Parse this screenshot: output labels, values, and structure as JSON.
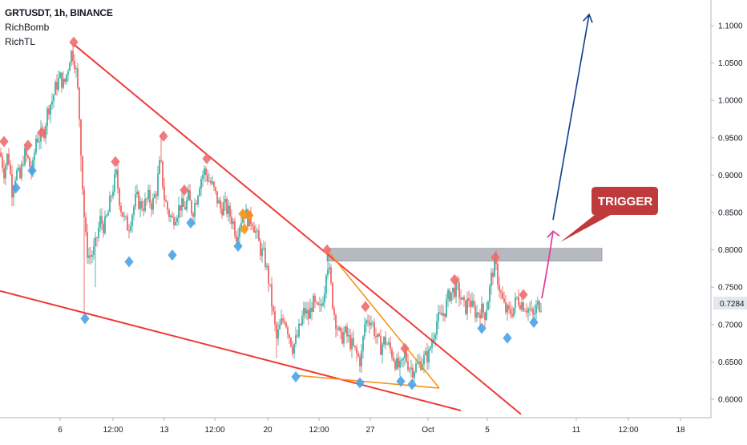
{
  "header": {
    "title": "GRTUSDT, 1h, BINANCE",
    "indicators": [
      "RichBomb",
      "RichTL"
    ]
  },
  "colors": {
    "up": "#26a69a",
    "down": "#ef5350",
    "trendline": "#ef3b36",
    "triangle": "#f7931a",
    "zone": "#9ea3ab",
    "target_arrow": "#0d3b8c",
    "trigger_arrow": "#e040a0",
    "trigger_label": "#c0393b",
    "marker_top": "#f26b6b",
    "marker_bottom": "#4aa3e8",
    "marker_special": "#f7931a",
    "price_tag_bg": "#e3e7ee"
  },
  "chart_data": {
    "type": "candlestick",
    "symbol": "GRTUSDT",
    "interval": "1h",
    "exchange": "BINANCE",
    "y_axis": {
      "ticks": [
        "0.6000",
        "0.6500",
        "0.7000",
        "0.7500",
        "0.8000",
        "0.8500",
        "0.9000",
        "0.9500",
        "1.0000",
        "1.0500",
        "1.1000"
      ],
      "ylim": [
        0.58,
        1.12
      ]
    },
    "x_axis": {
      "ticks": [
        "6",
        "12:00",
        "13",
        "12:00",
        "20",
        "12:00",
        "27",
        "Oct",
        "5",
        "11",
        "12:00",
        "18"
      ]
    },
    "current_price": "0.7284",
    "resistance_zone": [
      0.785,
      0.802
    ],
    "annotation": "TRIGGER",
    "path": [
      [
        0,
        0.93
      ],
      [
        5,
        0.905
      ],
      [
        10,
        0.93
      ],
      [
        15,
        0.88
      ],
      [
        20,
        0.905
      ],
      [
        25,
        0.895
      ],
      [
        30,
        0.93
      ],
      [
        35,
        0.92
      ],
      [
        40,
        0.9
      ],
      [
        45,
        0.95
      ],
      [
        50,
        0.95
      ],
      [
        55,
        0.96
      ],
      [
        60,
        0.99
      ],
      [
        65,
        1.0
      ],
      [
        70,
        1.02
      ],
      [
        75,
        1.03
      ],
      [
        80,
        1.02
      ],
      [
        85,
        1.045
      ],
      [
        88,
        1.065
      ],
      [
        92,
        1.06
      ],
      [
        96,
        1.03
      ],
      [
        100,
        0.96
      ],
      [
        104,
        0.86
      ],
      [
        108,
        0.8
      ],
      [
        112,
        0.79
      ],
      [
        118,
        0.8
      ],
      [
        125,
        0.84
      ],
      [
        130,
        0.83
      ],
      [
        135,
        0.85
      ],
      [
        140,
        0.88
      ],
      [
        145,
        0.9
      ],
      [
        150,
        0.86
      ],
      [
        155,
        0.84
      ],
      [
        160,
        0.83
      ],
      [
        165,
        0.85
      ],
      [
        170,
        0.87
      ],
      [
        175,
        0.86
      ],
      [
        180,
        0.86
      ],
      [
        185,
        0.87
      ],
      [
        190,
        0.86
      ],
      [
        195,
        0.88
      ],
      [
        200,
        0.92
      ],
      [
        205,
        0.87
      ],
      [
        210,
        0.85
      ],
      [
        215,
        0.84
      ],
      [
        220,
        0.85
      ],
      [
        225,
        0.86
      ],
      [
        230,
        0.855
      ],
      [
        235,
        0.87
      ],
      [
        240,
        0.85
      ],
      [
        245,
        0.87
      ],
      [
        250,
        0.895
      ],
      [
        255,
        0.905
      ],
      [
        260,
        0.895
      ],
      [
        265,
        0.885
      ],
      [
        270,
        0.87
      ],
      [
        275,
        0.855
      ],
      [
        280,
        0.86
      ],
      [
        285,
        0.85
      ],
      [
        290,
        0.84
      ],
      [
        295,
        0.82
      ],
      [
        300,
        0.84
      ],
      [
        305,
        0.85
      ],
      [
        310,
        0.84
      ],
      [
        315,
        0.84
      ],
      [
        320,
        0.82
      ],
      [
        325,
        0.8
      ],
      [
        330,
        0.79
      ],
      [
        335,
        0.76
      ],
      [
        340,
        0.72
      ],
      [
        345,
        0.68
      ],
      [
        350,
        0.7
      ],
      [
        355,
        0.71
      ],
      [
        360,
        0.69
      ],
      [
        365,
        0.67
      ],
      [
        370,
        0.68
      ],
      [
        375,
        0.7
      ],
      [
        380,
        0.72
      ],
      [
        385,
        0.71
      ],
      [
        390,
        0.73
      ],
      [
        395,
        0.72
      ],
      [
        400,
        0.72
      ],
      [
        405,
        0.75
      ],
      [
        408,
        0.79
      ],
      [
        412,
        0.76
      ],
      [
        416,
        0.72
      ],
      [
        420,
        0.7
      ],
      [
        425,
        0.68
      ],
      [
        430,
        0.69
      ],
      [
        435,
        0.68
      ],
      [
        440,
        0.67
      ],
      [
        445,
        0.66
      ],
      [
        450,
        0.65
      ],
      [
        455,
        0.7
      ],
      [
        460,
        0.71
      ],
      [
        465,
        0.7
      ],
      [
        470,
        0.68
      ],
      [
        475,
        0.67
      ],
      [
        480,
        0.68
      ],
      [
        485,
        0.67
      ],
      [
        490,
        0.66
      ],
      [
        495,
        0.645
      ],
      [
        500,
        0.64
      ],
      [
        505,
        0.66
      ],
      [
        510,
        0.645
      ],
      [
        515,
        0.64
      ],
      [
        520,
        0.645
      ],
      [
        525,
        0.65
      ],
      [
        530,
        0.655
      ],
      [
        535,
        0.66
      ],
      [
        540,
        0.685
      ],
      [
        545,
        0.705
      ],
      [
        550,
        0.71
      ],
      [
        555,
        0.72
      ],
      [
        560,
        0.74
      ],
      [
        565,
        0.745
      ],
      [
        570,
        0.75
      ],
      [
        575,
        0.735
      ],
      [
        580,
        0.72
      ],
      [
        585,
        0.735
      ],
      [
        590,
        0.72
      ],
      [
        595,
        0.715
      ],
      [
        600,
        0.72
      ],
      [
        605,
        0.715
      ],
      [
        610,
        0.74
      ],
      [
        614,
        0.77
      ],
      [
        618,
        0.78
      ],
      [
        622,
        0.755
      ],
      [
        626,
        0.735
      ],
      [
        630,
        0.72
      ],
      [
        635,
        0.715
      ],
      [
        640,
        0.72
      ],
      [
        645,
        0.735
      ],
      [
        650,
        0.73
      ],
      [
        655,
        0.725
      ],
      [
        660,
        0.72
      ],
      [
        665,
        0.71
      ],
      [
        670,
        0.725
      ],
      [
        675,
        0.728
      ]
    ],
    "trendlines": [
      {
        "name": "upper-wedge",
        "from": [
          92,
          1.075
        ],
        "to": [
          650,
          0.58
        ]
      },
      {
        "name": "lower-wedge",
        "from": [
          0,
          0.745
        ],
        "to": [
          575,
          0.585
        ]
      },
      {
        "name": "triangle-upper",
        "from": [
          408,
          0.8
        ],
        "to": [
          548,
          0.615
        ]
      },
      {
        "name": "triangle-lower",
        "from": [
          370,
          0.632
        ],
        "to": [
          548,
          0.615
        ]
      }
    ],
    "markers": [
      {
        "t": "top",
        "x": 5,
        "y": 0.945
      },
      {
        "t": "top",
        "x": 35,
        "y": 0.94
      },
      {
        "t": "top",
        "x": 52,
        "y": 0.957
      },
      {
        "t": "top",
        "x": 92,
        "y": 1.078
      },
      {
        "t": "top",
        "x": 144,
        "y": 0.918
      },
      {
        "t": "top",
        "x": 204,
        "y": 0.952
      },
      {
        "t": "top",
        "x": 230,
        "y": 0.88
      },
      {
        "t": "top",
        "x": 258,
        "y": 0.922
      },
      {
        "t": "top",
        "x": 408,
        "y": 0.8
      },
      {
        "t": "top",
        "x": 456,
        "y": 0.724
      },
      {
        "t": "top",
        "x": 505,
        "y": 0.668
      },
      {
        "t": "top",
        "x": 567,
        "y": 0.76
      },
      {
        "t": "top",
        "x": 618,
        "y": 0.79
      },
      {
        "t": "top",
        "x": 653,
        "y": 0.74
      },
      {
        "t": "bottom",
        "x": 20,
        "y": 0.883
      },
      {
        "t": "bottom",
        "x": 40,
        "y": 0.906
      },
      {
        "t": "bottom",
        "x": 106,
        "y": 0.708
      },
      {
        "t": "bottom",
        "x": 161,
        "y": 0.784
      },
      {
        "t": "bottom",
        "x": 215,
        "y": 0.793
      },
      {
        "t": "bottom",
        "x": 238,
        "y": 0.836
      },
      {
        "t": "bottom",
        "x": 297,
        "y": 0.805
      },
      {
        "t": "bottom",
        "x": 369,
        "y": 0.63
      },
      {
        "t": "bottom",
        "x": 449,
        "y": 0.622
      },
      {
        "t": "bottom",
        "x": 500,
        "y": 0.624
      },
      {
        "t": "bottom",
        "x": 514,
        "y": 0.62
      },
      {
        "t": "bottom",
        "x": 601,
        "y": 0.695
      },
      {
        "t": "bottom",
        "x": 633,
        "y": 0.682
      },
      {
        "t": "bottom",
        "x": 666,
        "y": 0.703
      },
      {
        "t": "special",
        "x": 303,
        "y": 0.848
      },
      {
        "t": "special",
        "x": 311,
        "y": 0.846
      },
      {
        "t": "special",
        "x": 305,
        "y": 0.828
      }
    ],
    "target_arrow": {
      "from": [
        690,
        0.84
      ],
      "to": [
        735,
        1.115
      ]
    },
    "trigger_arrow": {
      "from": [
        676,
        0.735
      ],
      "to": [
        690,
        0.825
      ]
    }
  }
}
